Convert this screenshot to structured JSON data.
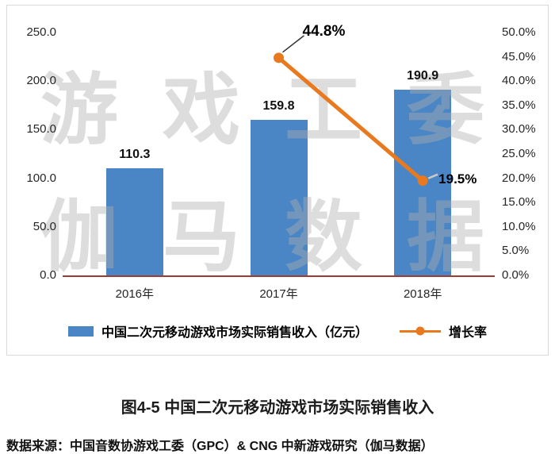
{
  "chart_data": {
    "type": "bar+line",
    "title": "图4-5 中国二次元移动游戏市场实际销售收入",
    "categories": [
      "2016年",
      "2017年",
      "2018年"
    ],
    "series": [
      {
        "name": "中国二次元移动游戏市场实际销售收入（亿元）",
        "type": "bar",
        "axis": "left",
        "color": "#4A86C5",
        "values": [
          110.3,
          159.8,
          190.9
        ]
      },
      {
        "name": "增长率",
        "type": "line",
        "axis": "right",
        "color": "#E8791E",
        "values": [
          null,
          44.8,
          19.5
        ]
      }
    ],
    "bar_labels": [
      "110.3",
      "159.8",
      "190.9"
    ],
    "line_labels": [
      "44.8%",
      "19.5%"
    ],
    "left_axis": {
      "min": 0,
      "max": 250,
      "step": 50,
      "labels": [
        "250.0",
        "200.0",
        "150.0",
        "100.0",
        "50.0",
        "0.0"
      ]
    },
    "right_axis": {
      "min": 0,
      "max": 50,
      "step": 5,
      "labels": [
        "50.0%",
        "45.0%",
        "40.0%",
        "35.0%",
        "30.0%",
        "25.0%",
        "20.0%",
        "15.0%",
        "10.0%",
        "5.0%",
        "0.0%"
      ]
    },
    "axis_line_color": "#9E3B32",
    "grid": false,
    "legend_position": "bottom"
  },
  "watermark": {
    "row1": "游戏工委",
    "row2": "伽马数据"
  },
  "caption": "图4-5 中国二次元移动游戏市场实际销售收入",
  "source": "数据来源：中国音数协游戏工委（GPC）& CNG 中新游戏研究（伽马数据）"
}
